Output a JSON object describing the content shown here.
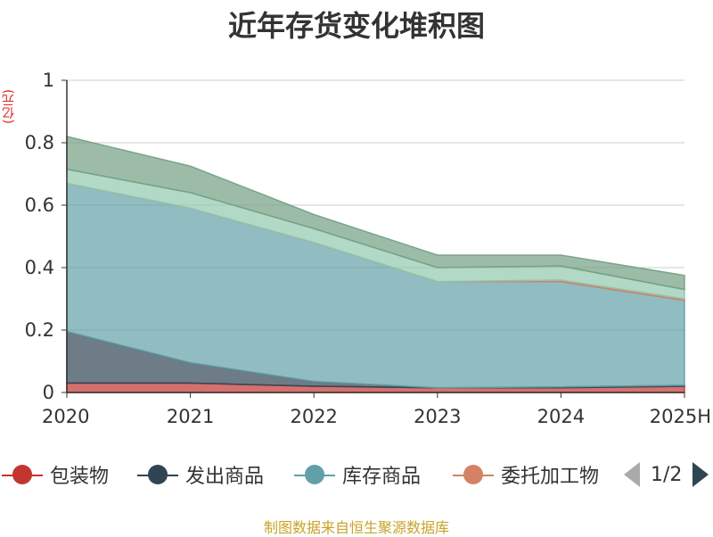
{
  "chart_data": {
    "type": "area",
    "stacked": true,
    "title": "近年存货变化堆积图",
    "unit": "(亿元)",
    "categories": [
      "2020",
      "2021",
      "2022",
      "2023",
      "2024",
      "2025H"
    ],
    "y_ticks": [
      "0",
      "0.2",
      "0.4",
      "0.6",
      "0.8",
      "1"
    ],
    "ylim": [
      0,
      1
    ],
    "grid": true,
    "legend_position": "bottom",
    "series": [
      {
        "name": "包装物",
        "color": "#c23531",
        "values": [
          0.03,
          0.03,
          0.02,
          0.015,
          0.015,
          0.02
        ]
      },
      {
        "name": "发出商品",
        "color": "#2f4554",
        "values": [
          0.165,
          0.065,
          0.015,
          0.0,
          0.003,
          0.003
        ]
      },
      {
        "name": "库存商品",
        "color": "#61a0a8",
        "values": [
          0.475,
          0.495,
          0.445,
          0.34,
          0.337,
          0.272
        ]
      },
      {
        "name": "委托加工物",
        "color": "#d48265",
        "values": [
          0.0,
          0.0,
          0.0,
          0.0,
          0.005,
          0.005
        ]
      },
      {
        "name": "",
        "color": "#91c7ae",
        "values": [
          0.045,
          0.05,
          0.045,
          0.045,
          0.045,
          0.03
        ]
      },
      {
        "name": "",
        "color": "#749f83",
        "values": [
          0.105,
          0.085,
          0.045,
          0.04,
          0.035,
          0.045
        ]
      }
    ]
  },
  "legend": {
    "items": [
      {
        "label": "包装物",
        "color": "#c23531"
      },
      {
        "label": "发出商品",
        "color": "#2f4554"
      },
      {
        "label": "库存商品",
        "color": "#61a0a8"
      },
      {
        "label": "委托加工物",
        "color": "#d48265"
      }
    ],
    "pager": "1/2"
  },
  "source": "制图数据来自恒生聚源数据库"
}
